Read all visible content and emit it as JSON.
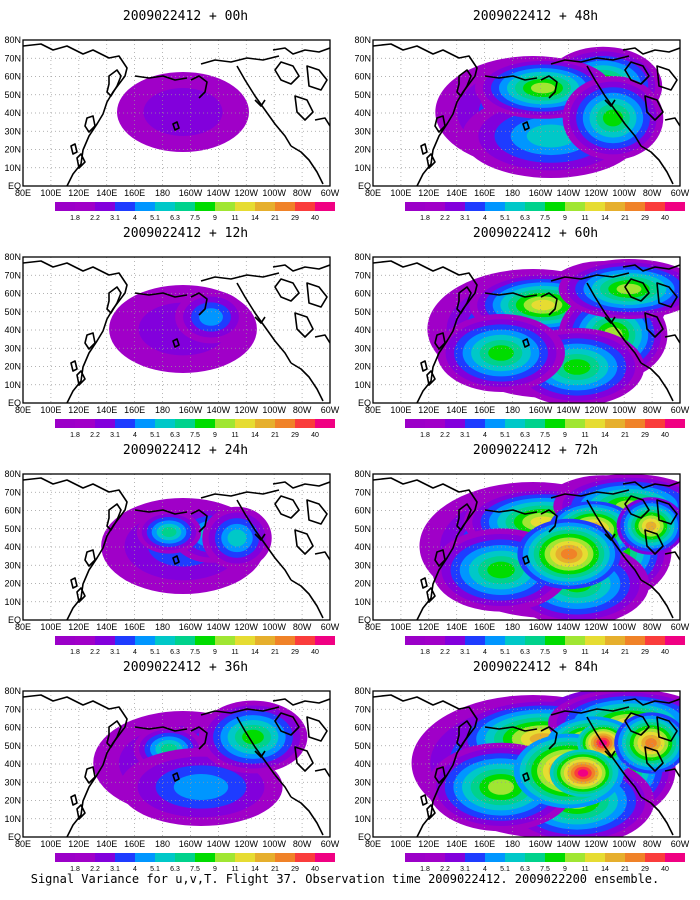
{
  "caption": "Signal Variance for u,v,T. Flight 37. Observation time 2009022412. 2009022200 ensemble.",
  "colorbar": {
    "labels": [
      "1.8",
      "2.2",
      "3.1",
      "4",
      "5.1",
      "6.3",
      "7.5",
      "9",
      "11",
      "14",
      "21",
      "29",
      "40"
    ],
    "colors": [
      "#a000c8",
      "#8200dc",
      "#1e3cff",
      "#0096ff",
      "#00c8c8",
      "#00d28c",
      "#00dc00",
      "#a0e632",
      "#e6dc32",
      "#e6af2d",
      "#f08228",
      "#fa3c3c",
      "#f00082"
    ]
  },
  "axes": {
    "x_labels": [
      "80E",
      "100E",
      "120E",
      "140E",
      "160E",
      "180",
      "160W",
      "140W",
      "120W",
      "100W",
      "80W",
      "60W"
    ],
    "y_labels": [
      "80N",
      "70N",
      "60N",
      "50N",
      "40N",
      "30N",
      "20N",
      "10N",
      "EQ"
    ]
  },
  "panels": [
    {
      "title": "2009022412 + 00h",
      "intensity": 0
    },
    {
      "title": "2009022412 + 48h",
      "intensity": 4
    },
    {
      "title": "2009022412 + 12h",
      "intensity": 1
    },
    {
      "title": "2009022412 + 60h",
      "intensity": 5
    },
    {
      "title": "2009022412 + 24h",
      "intensity": 2
    },
    {
      "title": "2009022412 + 72h",
      "intensity": 6
    },
    {
      "title": "2009022412 + 36h",
      "intensity": 3
    },
    {
      "title": "2009022412 + 84h",
      "intensity": 7
    }
  ]
}
